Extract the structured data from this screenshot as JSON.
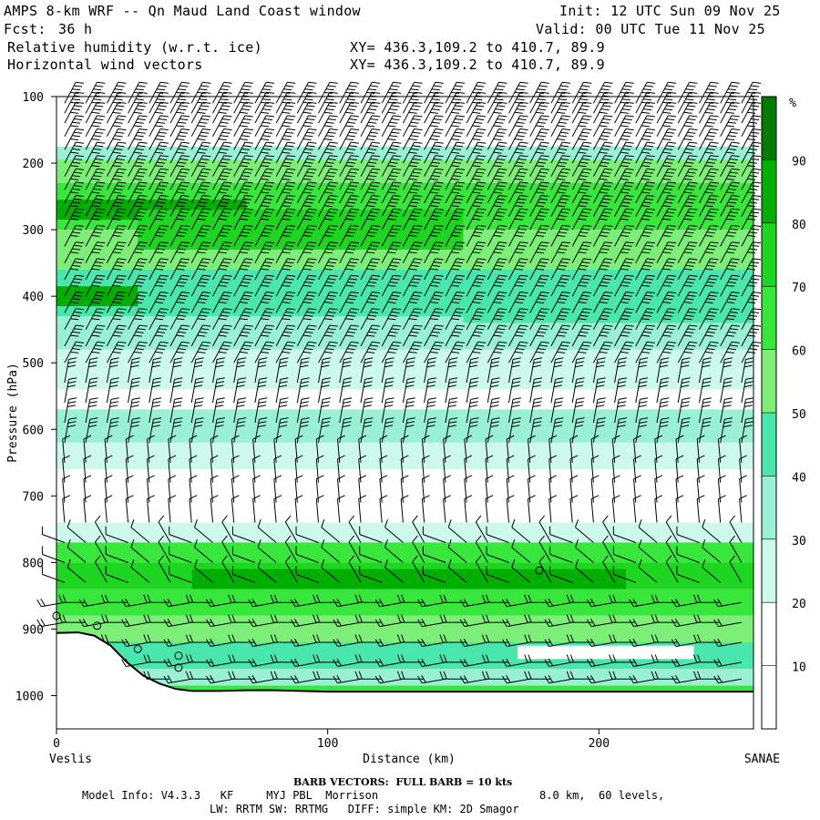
{
  "header": {
    "title": "AMPS 8-km WRF -- Qn Maud Land Coast window",
    "fcst_label": "Fcst:",
    "fcst_value": "36 h",
    "init": "Init: 12 UTC Sun 09 Nov 25",
    "valid": "Valid: 00 UTC Tue 11 Nov 25",
    "field1": "Relative humidity (w.r.t. ice)",
    "field2": "Horizontal wind vectors",
    "xy1": "XY= 436.3,109.2 to 410.7, 89.9",
    "xy2": "XY= 436.3,109.2 to 410.7, 89.9"
  },
  "footer": {
    "barb_note": "BARB VECTORS:  FULL BARB = 10 kts",
    "line1_a": "Model Info: V4.3.3   KF     MYJ PBL  Morrison",
    "line1_b": "8.0 km,  60 levels,",
    "line2": "LW: RRTM SW: RRTMG   DIFF: simple KM: 2D Smagor"
  },
  "colors": {
    "rh_10_20": "#ffffff",
    "rh_30": "#ccf9ec",
    "rh_40": "#99f0d4",
    "rh_50": "#49e6ad",
    "rh_60": "#7def79",
    "rh_70": "#39e63c",
    "rh_80": "#1ed521",
    "rh_90": "#00ae00",
    "rh_100": "#007b00",
    "terrain_line": "#000000"
  },
  "chart_data": {
    "type": "heatmap",
    "title": "Relative humidity (w.r.t. ice) cross-section with horizontal wind barbs",
    "xlabel": "Distance (km)",
    "ylabel": "Pressure (hPa)",
    "x_range": [
      0,
      257
    ],
    "y_range": [
      1050,
      100
    ],
    "x_ticks": [
      0,
      100,
      200
    ],
    "x_tick_labels": [
      "0",
      "100",
      "200"
    ],
    "y_ticks": [
      100,
      200,
      300,
      400,
      500,
      600,
      700,
      800,
      900,
      1000
    ],
    "y_tick_labels": [
      "100",
      "200",
      "300",
      "400",
      "500",
      "600",
      "700",
      "800",
      "900",
      "1000"
    ],
    "left_end_label": "Veslis",
    "right_end_label": "SANAE",
    "colorbar": {
      "unit": "%",
      "levels": [
        10,
        20,
        30,
        40,
        50,
        60,
        70,
        80,
        90
      ],
      "labels": [
        "10",
        "20",
        "30",
        "40",
        "50",
        "60",
        "70",
        "80",
        "90"
      ]
    },
    "rh_layers": [
      {
        "p_top": 100,
        "p_bottom": 175,
        "rh": 5
      },
      {
        "p_top": 175,
        "p_bottom": 195,
        "rh": 45
      },
      {
        "p_top": 195,
        "p_bottom": 230,
        "rh": 65
      },
      {
        "p_top": 230,
        "p_bottom": 300,
        "rh": 75
      },
      {
        "p_top": 300,
        "p_bottom": 360,
        "rh": 65
      },
      {
        "p_top": 360,
        "p_bottom": 430,
        "rh": 55
      },
      {
        "p_top": 430,
        "p_bottom": 480,
        "rh": 45
      },
      {
        "p_top": 480,
        "p_bottom": 540,
        "rh": 35
      },
      {
        "p_top": 540,
        "p_bottom": 570,
        "rh": 25
      },
      {
        "p_top": 570,
        "p_bottom": 620,
        "rh": 45
      },
      {
        "p_top": 620,
        "p_bottom": 660,
        "rh": 35
      },
      {
        "p_top": 660,
        "p_bottom": 740,
        "rh": 15
      },
      {
        "p_top": 740,
        "p_bottom": 770,
        "rh": 35
      },
      {
        "p_top": 770,
        "p_bottom": 800,
        "rh": 75
      },
      {
        "p_top": 800,
        "p_bottom": 840,
        "rh": 85
      },
      {
        "p_top": 840,
        "p_bottom": 880,
        "rh": 75
      },
      {
        "p_top": 880,
        "p_bottom": 920,
        "rh": 65
      },
      {
        "p_top": 920,
        "p_bottom": 960,
        "rh": 55
      },
      {
        "p_top": 960,
        "p_bottom": 985,
        "rh": 45
      },
      {
        "p_top": 985,
        "p_bottom": 1000,
        "rh": 75
      }
    ],
    "rh_features": [
      {
        "x0": 0,
        "x1": 70,
        "p_top": 255,
        "p_bottom": 285,
        "rh": 95
      },
      {
        "x0": 0,
        "x1": 30,
        "p_top": 385,
        "p_bottom": 415,
        "rh": 95
      },
      {
        "x0": 30,
        "x1": 150,
        "p_top": 270,
        "p_bottom": 330,
        "rh": 85
      },
      {
        "x0": 150,
        "x1": 257,
        "p_top": 370,
        "p_bottom": 440,
        "rh": 55
      },
      {
        "x0": 50,
        "x1": 210,
        "p_top": 810,
        "p_bottom": 840,
        "rh": 95
      },
      {
        "x0": 170,
        "x1": 235,
        "p_top": 925,
        "p_bottom": 945,
        "rh": 25
      }
    ],
    "terrain": {
      "x": [
        0,
        8,
        14,
        20,
        26,
        32,
        38,
        44,
        50,
        60,
        70,
        80,
        90,
        100,
        257
      ],
      "p": [
        906,
        905,
        910,
        925,
        950,
        970,
        982,
        990,
        993,
        993,
        992,
        992,
        993,
        994,
        994
      ]
    },
    "barb_rows_hpa": [
      110,
      125,
      140,
      160,
      180,
      200,
      220,
      240,
      260,
      280,
      300,
      325,
      350,
      375,
      400,
      425,
      450,
      475,
      500,
      530,
      560,
      590,
      620,
      650,
      680,
      710,
      740,
      770,
      800,
      830,
      860,
      890,
      920,
      950,
      975
    ]
  }
}
